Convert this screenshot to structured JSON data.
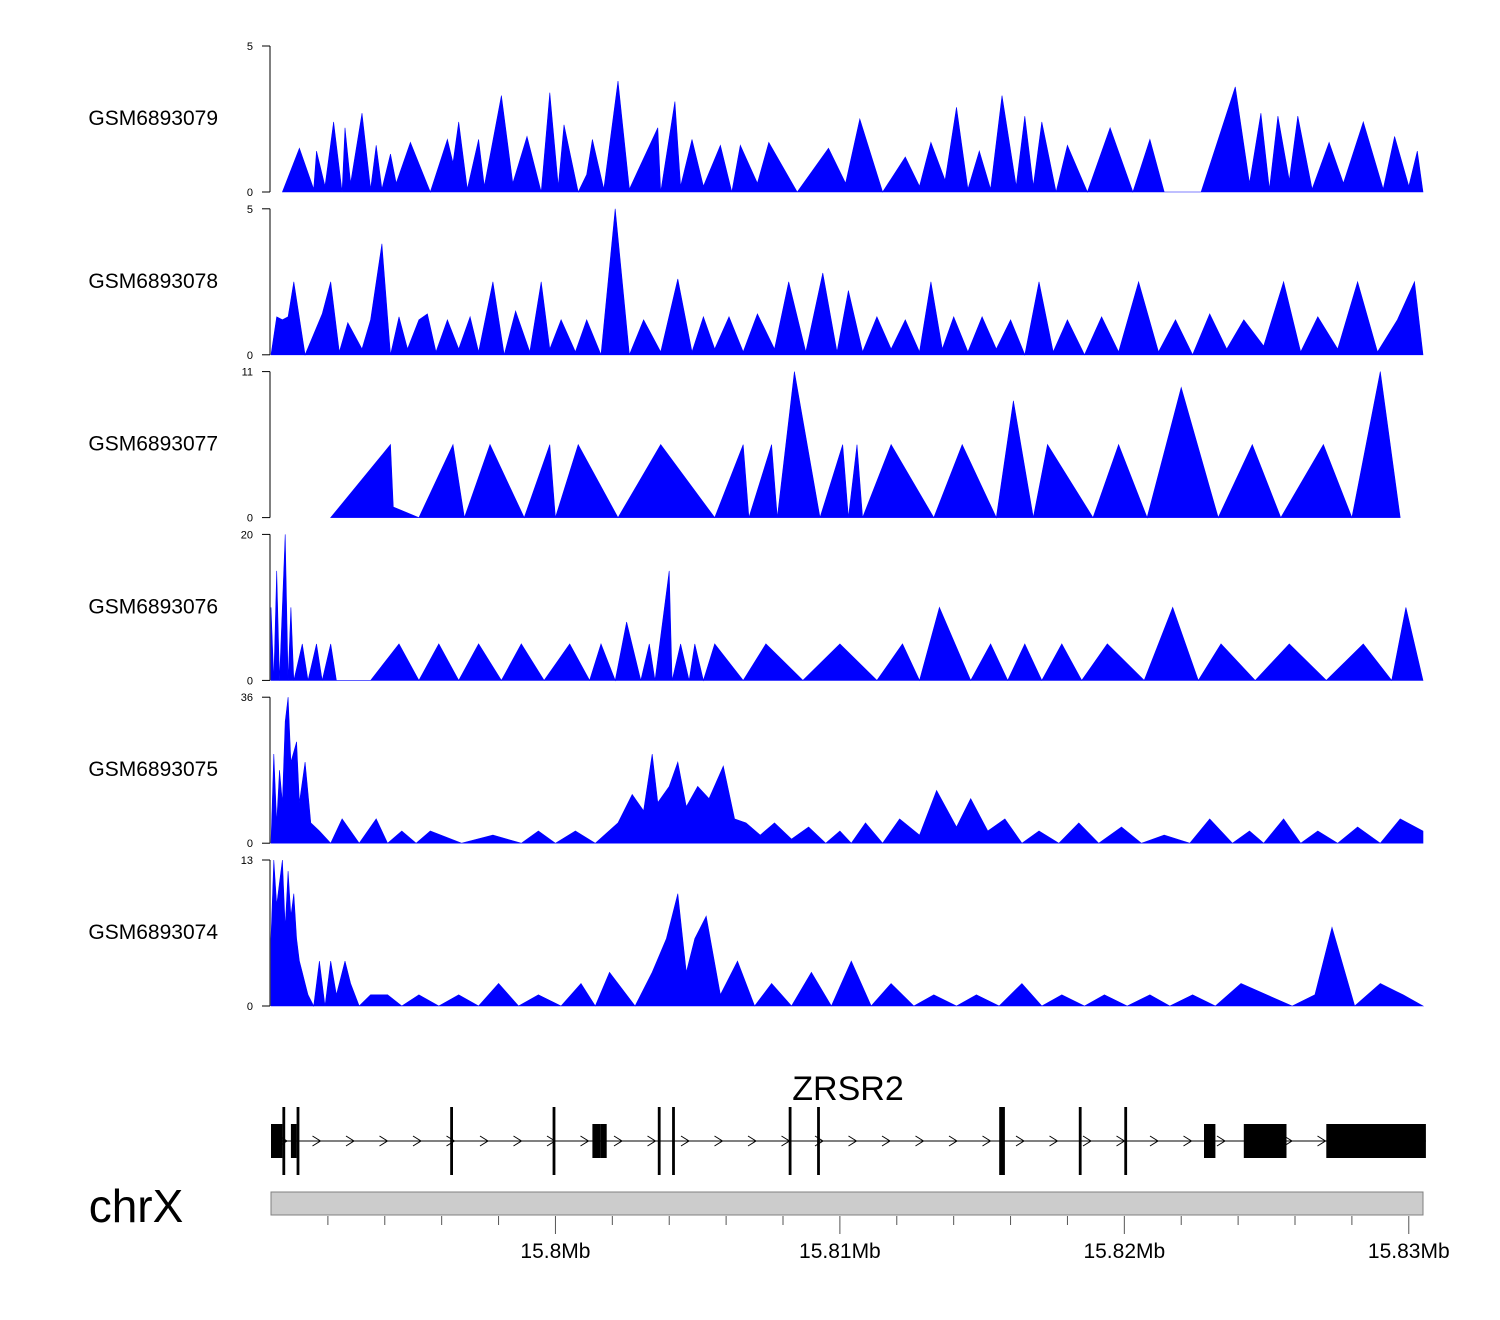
{
  "chart_data": {
    "type": "area",
    "chromosome": "chrX",
    "gene": {
      "name": "ZRSR2",
      "strand": "+",
      "exons_mb": [
        [
          15.79,
          15.7904,
          "thick"
        ],
        [
          15.7904,
          15.7905,
          "thin"
        ],
        [
          15.7907,
          15.7909,
          "thick"
        ],
        [
          15.7909,
          15.791,
          "thin"
        ],
        [
          15.7963,
          15.7964,
          "thin"
        ],
        [
          15.7999,
          15.8,
          "thin"
        ],
        [
          15.8013,
          15.8016,
          "thick"
        ],
        [
          15.8016,
          15.8018,
          "thick"
        ],
        [
          15.8036,
          15.8037,
          "thin"
        ],
        [
          15.8041,
          15.8042,
          "thin"
        ],
        [
          15.8082,
          15.8083,
          "thin"
        ],
        [
          15.8092,
          15.8093,
          "thin"
        ],
        [
          15.8156,
          15.8158,
          "thin"
        ],
        [
          15.8184,
          15.8185,
          "thin"
        ],
        [
          15.82,
          15.8201,
          "thin"
        ],
        [
          15.8228,
          15.8232,
          "thick"
        ],
        [
          15.8242,
          15.8257,
          "thick"
        ],
        [
          15.8271,
          15.8306,
          "thick"
        ]
      ]
    },
    "x_axis": {
      "range_mb": [
        15.79,
        15.8305
      ],
      "ticks_mb": [
        15.8,
        15.81,
        15.82,
        15.83
      ],
      "tick_labels": [
        "15.8Mb",
        "15.81Mb",
        "15.82Mb",
        "15.83Mb"
      ],
      "minor_ticks_mb": [
        15.792,
        15.794,
        15.796,
        15.798,
        15.802,
        15.804,
        15.806,
        15.808,
        15.812,
        15.814,
        15.816,
        15.818,
        15.822,
        15.824,
        15.826,
        15.828
      ]
    },
    "tracks": [
      {
        "name": "GSM6893079",
        "ymax": 5,
        "y_tick_labels": [
          "5",
          "0"
        ],
        "color": "#0000ff",
        "x_mb": [
          15.7904,
          15.791,
          15.7915,
          15.7916,
          15.7919,
          15.7922,
          15.7925,
          15.7926,
          15.7928,
          15.7932,
          15.7935,
          15.7937,
          15.7939,
          15.7942,
          15.7944,
          15.7949,
          15.7956,
          15.7962,
          15.7964,
          15.7966,
          15.7969,
          15.7973,
          15.7975,
          15.7981,
          15.7985,
          15.799,
          15.7995,
          15.7998,
          15.8001,
          15.8003,
          15.8008,
          15.8011,
          15.8013,
          15.8017,
          15.8022,
          15.8026,
          15.8036,
          15.8037,
          15.8042,
          15.8044,
          15.8048,
          15.8052,
          15.8058,
          15.8062,
          15.8065,
          15.8071,
          15.8075,
          15.8085,
          15.8096,
          15.8102,
          15.8107,
          15.8115,
          15.8123,
          15.8128,
          15.8132,
          15.8137,
          15.8141,
          15.8145,
          15.8149,
          15.8153,
          15.8157,
          15.8162,
          15.8165,
          15.8168,
          15.8171,
          15.8176,
          15.818,
          15.8187,
          15.8195,
          15.8203,
          15.8209,
          15.8214,
          15.8227,
          15.8239,
          15.8244,
          15.8248,
          15.8251,
          15.8254,
          15.8258,
          15.8261,
          15.8266,
          15.8272,
          15.8277,
          15.8284,
          15.8291,
          15.8295,
          15.83,
          15.8303,
          15.8305
        ],
        "y": [
          0,
          1.5,
          0.1,
          1.4,
          0.2,
          2.4,
          0,
          2.2,
          0.3,
          2.7,
          0.1,
          1.6,
          0.1,
          1.3,
          0.3,
          1.7,
          0,
          1.8,
          1,
          2.4,
          0.1,
          1.8,
          0.2,
          3.3,
          0.3,
          1.9,
          0,
          3.4,
          0.2,
          2.3,
          0,
          0.6,
          1.8,
          0.1,
          3.8,
          0.1,
          2.2,
          0,
          3.1,
          0.2,
          1.8,
          0.2,
          1.6,
          0,
          1.6,
          0.3,
          1.7,
          0,
          1.5,
          0.3,
          2.5,
          0,
          1.2,
          0.2,
          1.7,
          0.4,
          2.9,
          0.1,
          1.4,
          0.1,
          3.3,
          0.2,
          2.6,
          0.2,
          2.4,
          0,
          1.6,
          0,
          2.2,
          0,
          1.8,
          0,
          0,
          3.6,
          0.3,
          2.7,
          0.1,
          2.6,
          0.4,
          2.6,
          0.1,
          1.7,
          0.3,
          2.4,
          0.1,
          1.9,
          0.2,
          1.4,
          0
        ]
      },
      {
        "name": "GSM6893078",
        "ymax": 5,
        "y_tick_labels": [
          "5",
          "0"
        ],
        "color": "#0000ff",
        "x_mb": [
          15.79,
          15.7902,
          15.7904,
          15.7906,
          15.7908,
          15.7912,
          15.7918,
          15.7921,
          15.7924,
          15.7927,
          15.7932,
          15.7935,
          15.7939,
          15.7942,
          15.7945,
          15.7948,
          15.7952,
          15.7955,
          15.7958,
          15.7962,
          15.7966,
          15.797,
          15.7973,
          15.7978,
          15.7982,
          15.7986,
          15.7991,
          15.7995,
          15.7998,
          15.8002,
          15.8007,
          15.8011,
          15.8016,
          15.8021,
          15.8026,
          15.8031,
          15.8037,
          15.8043,
          15.8048,
          15.8052,
          15.8056,
          15.8061,
          15.8066,
          15.8071,
          15.8077,
          15.8082,
          15.8088,
          15.8094,
          15.8099,
          15.8103,
          15.8108,
          15.8113,
          15.8118,
          15.8123,
          15.8128,
          15.8132,
          15.8136,
          15.814,
          15.8145,
          15.815,
          15.8155,
          15.816,
          15.8165,
          15.817,
          15.8175,
          15.818,
          15.8186,
          15.8192,
          15.8198,
          15.8205,
          15.8212,
          15.8218,
          15.8224,
          15.823,
          15.8236,
          15.8242,
          15.8249,
          15.8256,
          15.8262,
          15.8268,
          15.8275,
          15.8282,
          15.8289,
          15.8296,
          15.8302,
          15.8305
        ],
        "y": [
          0,
          1.3,
          1.2,
          1.3,
          2.5,
          0,
          1.4,
          2.5,
          0.1,
          1.1,
          0.2,
          1.2,
          3.8,
          0,
          1.3,
          0.2,
          1.2,
          1.4,
          0.1,
          1.2,
          0.2,
          1.3,
          0.1,
          2.5,
          0,
          1.5,
          0.1,
          2.5,
          0.2,
          1.2,
          0.1,
          1.2,
          0,
          5,
          0,
          1.2,
          0.1,
          2.6,
          0.1,
          1.3,
          0.2,
          1.3,
          0.1,
          1.4,
          0.2,
          2.5,
          0.1,
          2.8,
          0.1,
          2.2,
          0.1,
          1.3,
          0.2,
          1.2,
          0.1,
          2.5,
          0.2,
          1.3,
          0.1,
          1.3,
          0.2,
          1.2,
          0,
          2.5,
          0.1,
          1.2,
          0,
          1.3,
          0.1,
          2.5,
          0.1,
          1.2,
          0,
          1.4,
          0.2,
          1.2,
          0.3,
          2.5,
          0.1,
          1.3,
          0.2,
          2.5,
          0.1,
          1.2,
          2.5,
          0
        ]
      },
      {
        "name": "GSM6893077",
        "ymax": 11,
        "y_tick_labels": [
          "11",
          "0"
        ],
        "color": "#0000ff",
        "x_mb": [
          15.7921,
          15.7942,
          15.7943,
          15.7952,
          15.7964,
          15.7968,
          15.7977,
          15.7989,
          15.7998,
          15.8,
          15.8008,
          15.8022,
          15.8037,
          15.8056,
          15.8066,
          15.8068,
          15.8076,
          15.8078,
          15.8084,
          15.8093,
          15.8101,
          15.8103,
          15.8106,
          15.8108,
          15.8118,
          15.8133,
          15.8143,
          15.8155,
          15.8161,
          15.8168,
          15.8173,
          15.8189,
          15.8198,
          15.8208,
          15.822,
          15.8233,
          15.8245,
          15.8255,
          15.827,
          15.828,
          15.829,
          15.8297
        ],
        "y": [
          0,
          5.5,
          0.8,
          0,
          5.5,
          0,
          5.5,
          0,
          5.5,
          0,
          5.5,
          0,
          5.5,
          0,
          5.5,
          0,
          5.5,
          0,
          11,
          0,
          5.5,
          0,
          5.5,
          0,
          5.5,
          0,
          5.5,
          0,
          8.8,
          0,
          5.5,
          0,
          5.5,
          0,
          9.8,
          0,
          5.5,
          0,
          5.5,
          0,
          11,
          0
        ]
      },
      {
        "name": "GSM6893076",
        "ymax": 20,
        "y_tick_labels": [
          "20",
          "0"
        ],
        "color": "#0000ff",
        "x_mb": [
          15.79,
          15.7901,
          15.7902,
          15.7903,
          15.7905,
          15.7906,
          15.7907,
          15.7908,
          15.7911,
          15.7913,
          15.7916,
          15.7918,
          15.7921,
          15.7923,
          15.7935,
          15.7945,
          15.7952,
          15.7959,
          15.7966,
          15.7973,
          15.7981,
          15.7988,
          15.7996,
          15.8005,
          15.8012,
          15.8016,
          15.8021,
          15.8025,
          15.803,
          15.8033,
          15.8035,
          15.804,
          15.8041,
          15.8044,
          15.8047,
          15.8049,
          15.8052,
          15.8056,
          15.8066,
          15.8074,
          15.8087,
          15.81,
          15.8113,
          15.8122,
          15.8128,
          15.8135,
          15.8146,
          15.8153,
          15.8159,
          15.8165,
          15.8171,
          15.8178,
          15.8185,
          15.8194,
          15.8207,
          15.8217,
          15.8226,
          15.8234,
          15.8246,
          15.8258,
          15.8271,
          15.8284,
          15.8294,
          15.8299,
          15.8305
        ],
        "y": [
          10,
          0,
          15,
          0,
          20,
          0,
          10,
          0,
          5,
          0,
          5,
          0,
          5,
          0,
          0,
          5,
          0,
          5,
          0,
          5,
          0,
          5,
          0,
          5,
          0,
          5,
          0,
          8,
          0,
          5,
          0,
          15,
          0,
          5,
          0,
          5,
          0,
          5,
          0,
          5,
          0,
          5,
          0,
          5,
          0,
          10,
          0,
          5,
          0,
          5,
          0,
          5,
          0,
          5,
          0,
          10,
          0,
          5,
          0,
          5,
          0,
          5,
          0,
          10,
          0
        ]
      },
      {
        "name": "GSM6893075",
        "ymax": 36,
        "y_tick_labels": [
          "36",
          "0"
        ],
        "color": "#0000ff",
        "x_mb": [
          15.79,
          15.7901,
          15.7902,
          15.7903,
          15.7904,
          15.7905,
          15.7906,
          15.7907,
          15.7909,
          15.791,
          15.7912,
          15.7914,
          15.7917,
          15.7921,
          15.7925,
          15.7931,
          15.7937,
          15.7941,
          15.7946,
          15.7951,
          15.7956,
          15.7967,
          15.7978,
          15.7988,
          15.7994,
          15.8,
          15.8007,
          15.8014,
          15.8022,
          15.8027,
          15.8031,
          15.8034,
          15.8036,
          15.804,
          15.8043,
          15.8046,
          15.805,
          15.8054,
          15.8059,
          15.8063,
          15.8067,
          15.8072,
          15.8077,
          15.8083,
          15.8089,
          15.8095,
          15.81,
          15.8104,
          15.8109,
          15.8115,
          15.8121,
          15.8128,
          15.8134,
          15.8141,
          15.8146,
          15.8152,
          15.8158,
          15.8164,
          15.817,
          15.8177,
          15.8184,
          15.8191,
          15.8199,
          15.8206,
          15.8214,
          15.8223,
          15.823,
          15.8238,
          15.8244,
          15.8249,
          15.8256,
          15.8262,
          15.8268,
          15.8275,
          15.8282,
          15.829,
          15.8297,
          15.8305
        ],
        "y": [
          0,
          22,
          5,
          18,
          10,
          30,
          36,
          20,
          25,
          10,
          20,
          5,
          3,
          0,
          6,
          0,
          6,
          0,
          3,
          0,
          3,
          0,
          2,
          0,
          3,
          0,
          3,
          0,
          5,
          12,
          8,
          22,
          10,
          14,
          20,
          9,
          14,
          11,
          19,
          6,
          5,
          2,
          5,
          1,
          4,
          0,
          3,
          0,
          5,
          0,
          6,
          2,
          13,
          4,
          11,
          3,
          6,
          0,
          3,
          0,
          5,
          0,
          4,
          0,
          2,
          0,
          6,
          0,
          3,
          0,
          6,
          0,
          3,
          0,
          4,
          0,
          6,
          3
        ]
      },
      {
        "name": "GSM6893074",
        "ymax": 13,
        "y_tick_labels": [
          "13",
          "0"
        ],
        "color": "#0000ff",
        "x_mb": [
          15.79,
          15.7901,
          15.7902,
          15.7903,
          15.7904,
          15.7905,
          15.7906,
          15.7907,
          15.7908,
          15.7909,
          15.791,
          15.7911,
          15.7912,
          15.7913,
          15.7915,
          15.7917,
          15.7919,
          15.7921,
          15.7923,
          15.7926,
          15.7928,
          15.7931,
          15.7935,
          15.7941,
          15.7946,
          15.7952,
          15.7959,
          15.7966,
          15.7973,
          15.798,
          15.7987,
          15.7994,
          15.8002,
          15.8009,
          15.8014,
          15.8019,
          15.8028,
          15.8034,
          15.8039,
          15.8043,
          15.8046,
          15.8049,
          15.8053,
          15.8058,
          15.8064,
          15.807,
          15.8076,
          15.8083,
          15.809,
          15.8097,
          15.8104,
          15.8111,
          15.8118,
          15.8126,
          15.8133,
          15.8141,
          15.8148,
          15.8156,
          15.8164,
          15.8171,
          15.8178,
          15.8186,
          15.8193,
          15.8201,
          15.8209,
          15.8216,
          15.8224,
          15.8232,
          15.8241,
          15.825,
          15.8259,
          15.8267,
          15.8273,
          15.8281,
          15.829,
          15.8298,
          15.8305
        ],
        "y": [
          6,
          13,
          9,
          11,
          13,
          7,
          12,
          8,
          10,
          6,
          4,
          3,
          2,
          1,
          0,
          4,
          0,
          4,
          1,
          4,
          2,
          0,
          1,
          1,
          0,
          1,
          0,
          1,
          0,
          2,
          0,
          1,
          0,
          2,
          0,
          3,
          0,
          3,
          6,
          10,
          3,
          6,
          8,
          1,
          4,
          0,
          2,
          0,
          3,
          0,
          4,
          0,
          2,
          0,
          1,
          0,
          1,
          0,
          2,
          0,
          1,
          0,
          1,
          0,
          1,
          0,
          1,
          0,
          2,
          1,
          0,
          1,
          7,
          0,
          2,
          1,
          0
        ]
      }
    ]
  }
}
